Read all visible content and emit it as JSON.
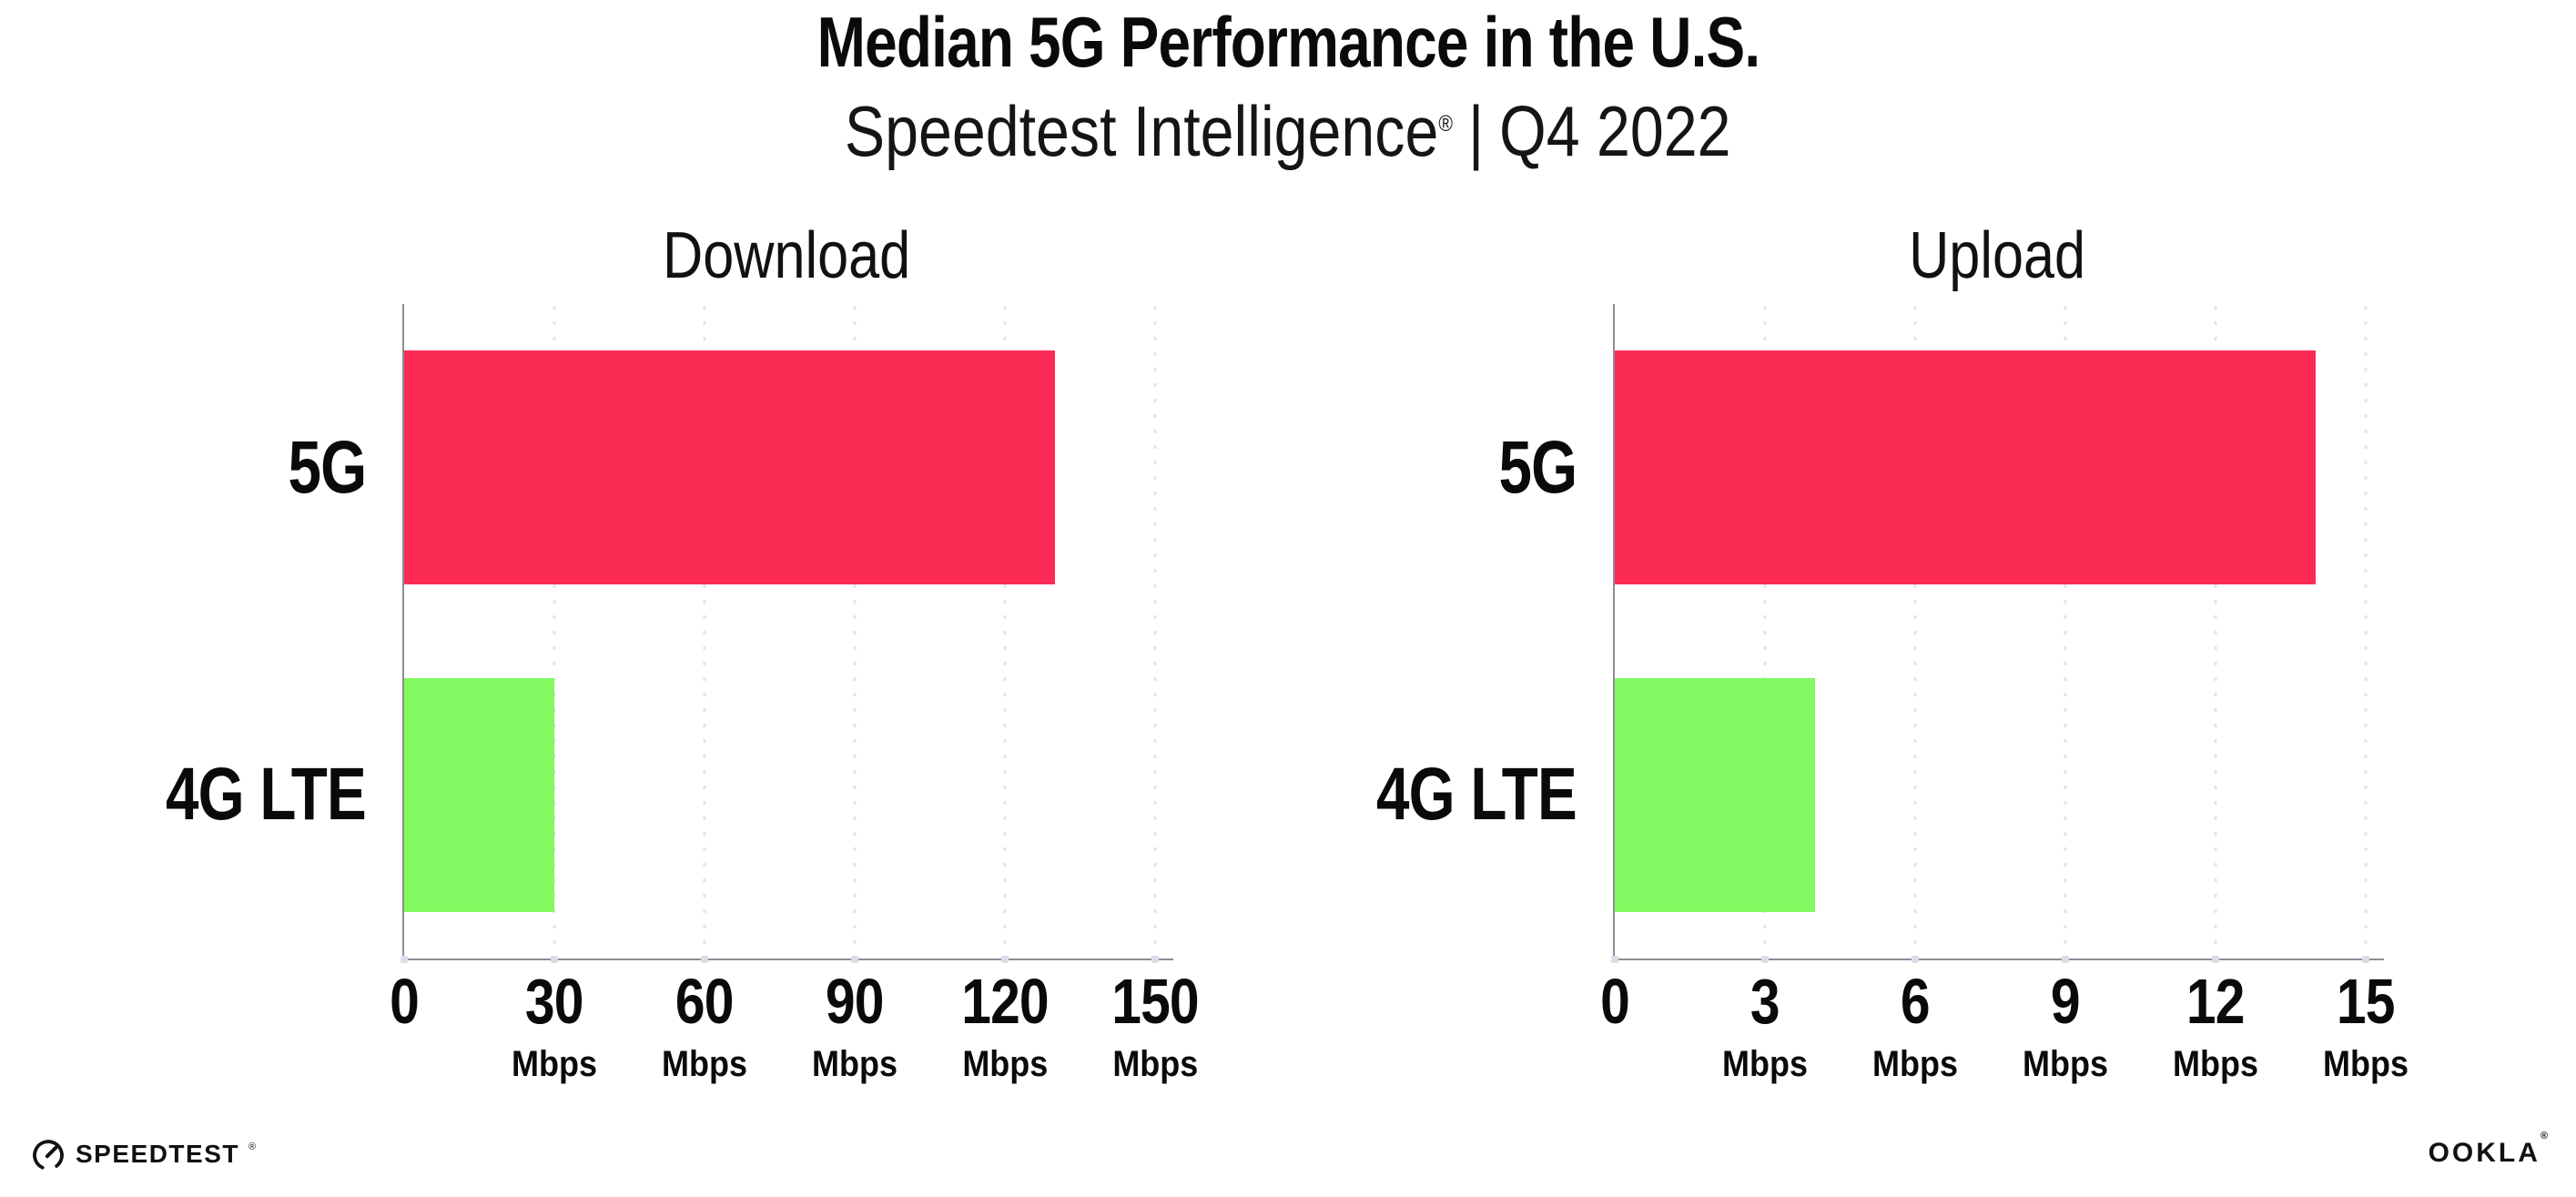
{
  "page": {
    "background": "#ffffff"
  },
  "header": {
    "title": "Median 5G Performance in the U.S.",
    "subtitle": {
      "brand": "Speedtest Intelligence",
      "registered": "®",
      "divider": "|",
      "period": "Q4 2022"
    }
  },
  "chart_data": [
    {
      "type": "bar",
      "orientation": "horizontal",
      "title": "Download",
      "categories": [
        "5G",
        "4G LTE"
      ],
      "values": [
        130,
        30
      ],
      "unit": "Mbps",
      "xlim": [
        0,
        150
      ],
      "ticks": [
        0,
        30,
        60,
        90,
        120,
        150
      ],
      "bar_colors": [
        "#fb2b55",
        "#80fa60"
      ],
      "grid": "dotted-vertical-gridlines",
      "legend": "none"
    },
    {
      "type": "bar",
      "orientation": "horizontal",
      "title": "Upload",
      "categories": [
        "5G",
        "4G LTE"
      ],
      "values": [
        14,
        4
      ],
      "unit": "Mbps",
      "xlim": [
        0,
        15
      ],
      "ticks": [
        0,
        3,
        6,
        9,
        12,
        15
      ],
      "bar_colors": [
        "#fb2b55",
        "#80fa60"
      ],
      "grid": "dotted-vertical-gridlines",
      "legend": "none"
    }
  ],
  "footer": {
    "speedtest_wordmark": "SPEEDTEST",
    "speedtest_mark": "®",
    "ookla_wordmark": "OOKLA",
    "ookla_mark": "®"
  },
  "colors": {
    "bar_5g": "#fb2b55",
    "bar_4g_lte": "#80fa60",
    "axis": "#8e8e93",
    "gridline": "#e3e3f0",
    "text": "#0a0a0a"
  }
}
